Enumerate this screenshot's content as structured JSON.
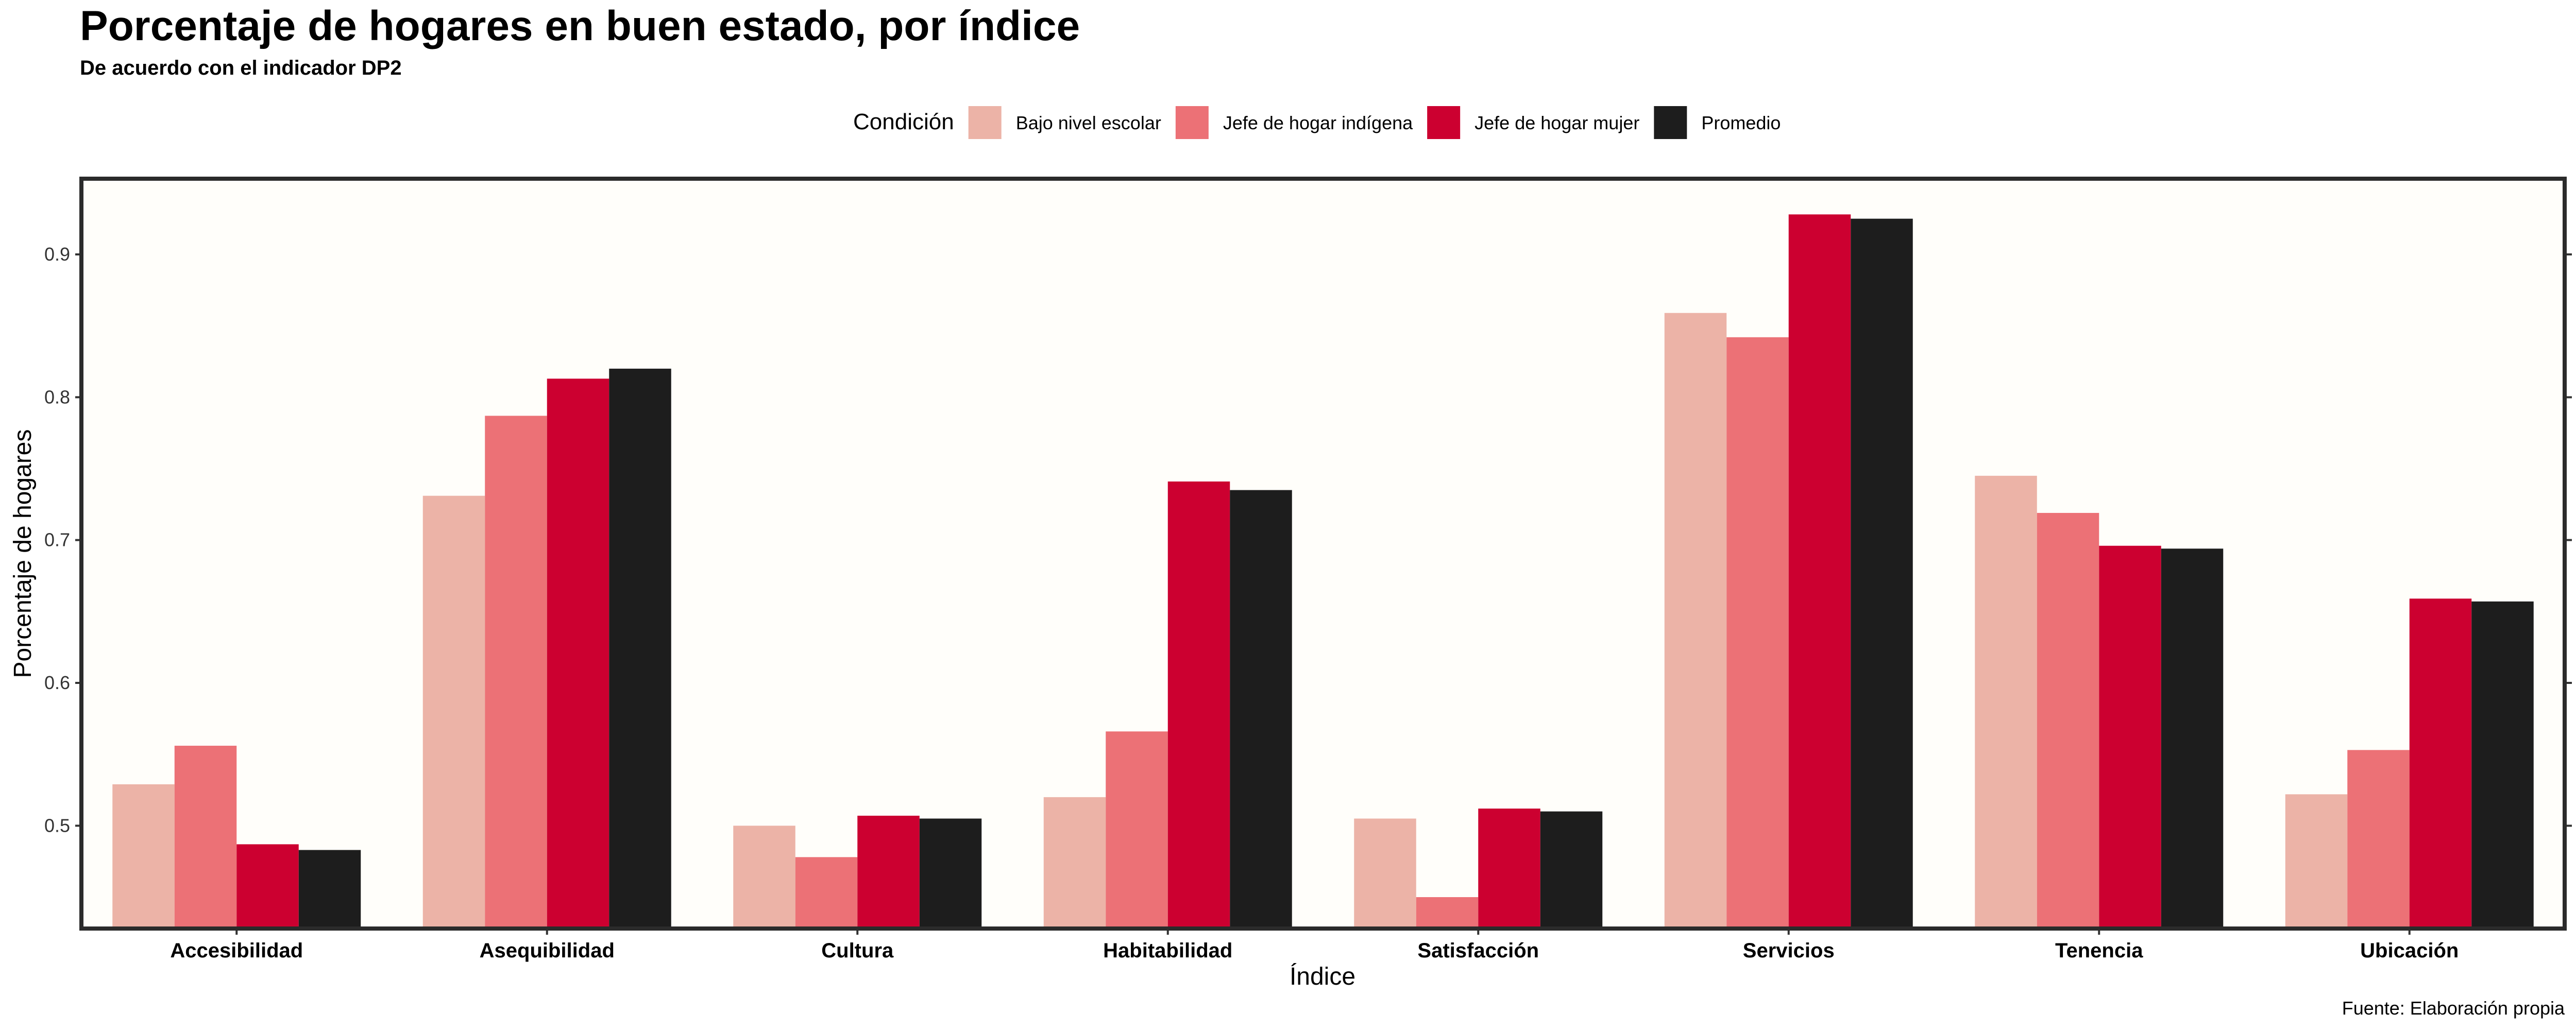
{
  "chart_data": {
    "type": "bar",
    "title": "Porcentaje de hogares en buen estado, por índice",
    "subtitle": "De acuerdo con el indicador DP2",
    "xlabel": "Índice",
    "ylabel": "Porcentaje de hogares",
    "caption": "Fuente: Elaboración propia",
    "legend_title": "Condición",
    "legend_position": "top",
    "ylim": [
      0.428,
      0.953
    ],
    "yticks": [
      {
        "value": 0.5,
        "label": "0.5"
      },
      {
        "value": 0.6,
        "label": "0.6"
      },
      {
        "value": 0.7,
        "label": "0.7"
      },
      {
        "value": 0.8,
        "label": "0.8"
      },
      {
        "value": 0.9,
        "label": "0.9"
      }
    ],
    "grid": false,
    "categories": [
      "Accesibilidad",
      "Asequibilidad",
      "Cultura",
      "Habitabilidad",
      "Satisfacción",
      "Servicios",
      "Tenencia",
      "Ubicación"
    ],
    "series": [
      {
        "name": "Bajo nivel escolar",
        "color": "#ecb3a7",
        "values": [
          0.529,
          0.731,
          0.5,
          0.52,
          0.505,
          0.859,
          0.745,
          0.522
        ]
      },
      {
        "name": "Jefe de hogar indígena",
        "color": "#ec7176",
        "values": [
          0.556,
          0.787,
          0.478,
          0.566,
          0.45,
          0.842,
          0.719,
          0.553
        ]
      },
      {
        "name": "Jefe de hogar mujer",
        "color": "#cc0030",
        "values": [
          0.487,
          0.813,
          0.507,
          0.741,
          0.512,
          0.928,
          0.696,
          0.659
        ]
      },
      {
        "name": "Promedio",
        "color": "#1d1d1d",
        "values": [
          0.483,
          0.82,
          0.505,
          0.735,
          0.51,
          0.925,
          0.694,
          0.657
        ]
      }
    ],
    "colors": {
      "panel_background": "#fffefa",
      "panel_border": "#2b2b2b"
    }
  }
}
